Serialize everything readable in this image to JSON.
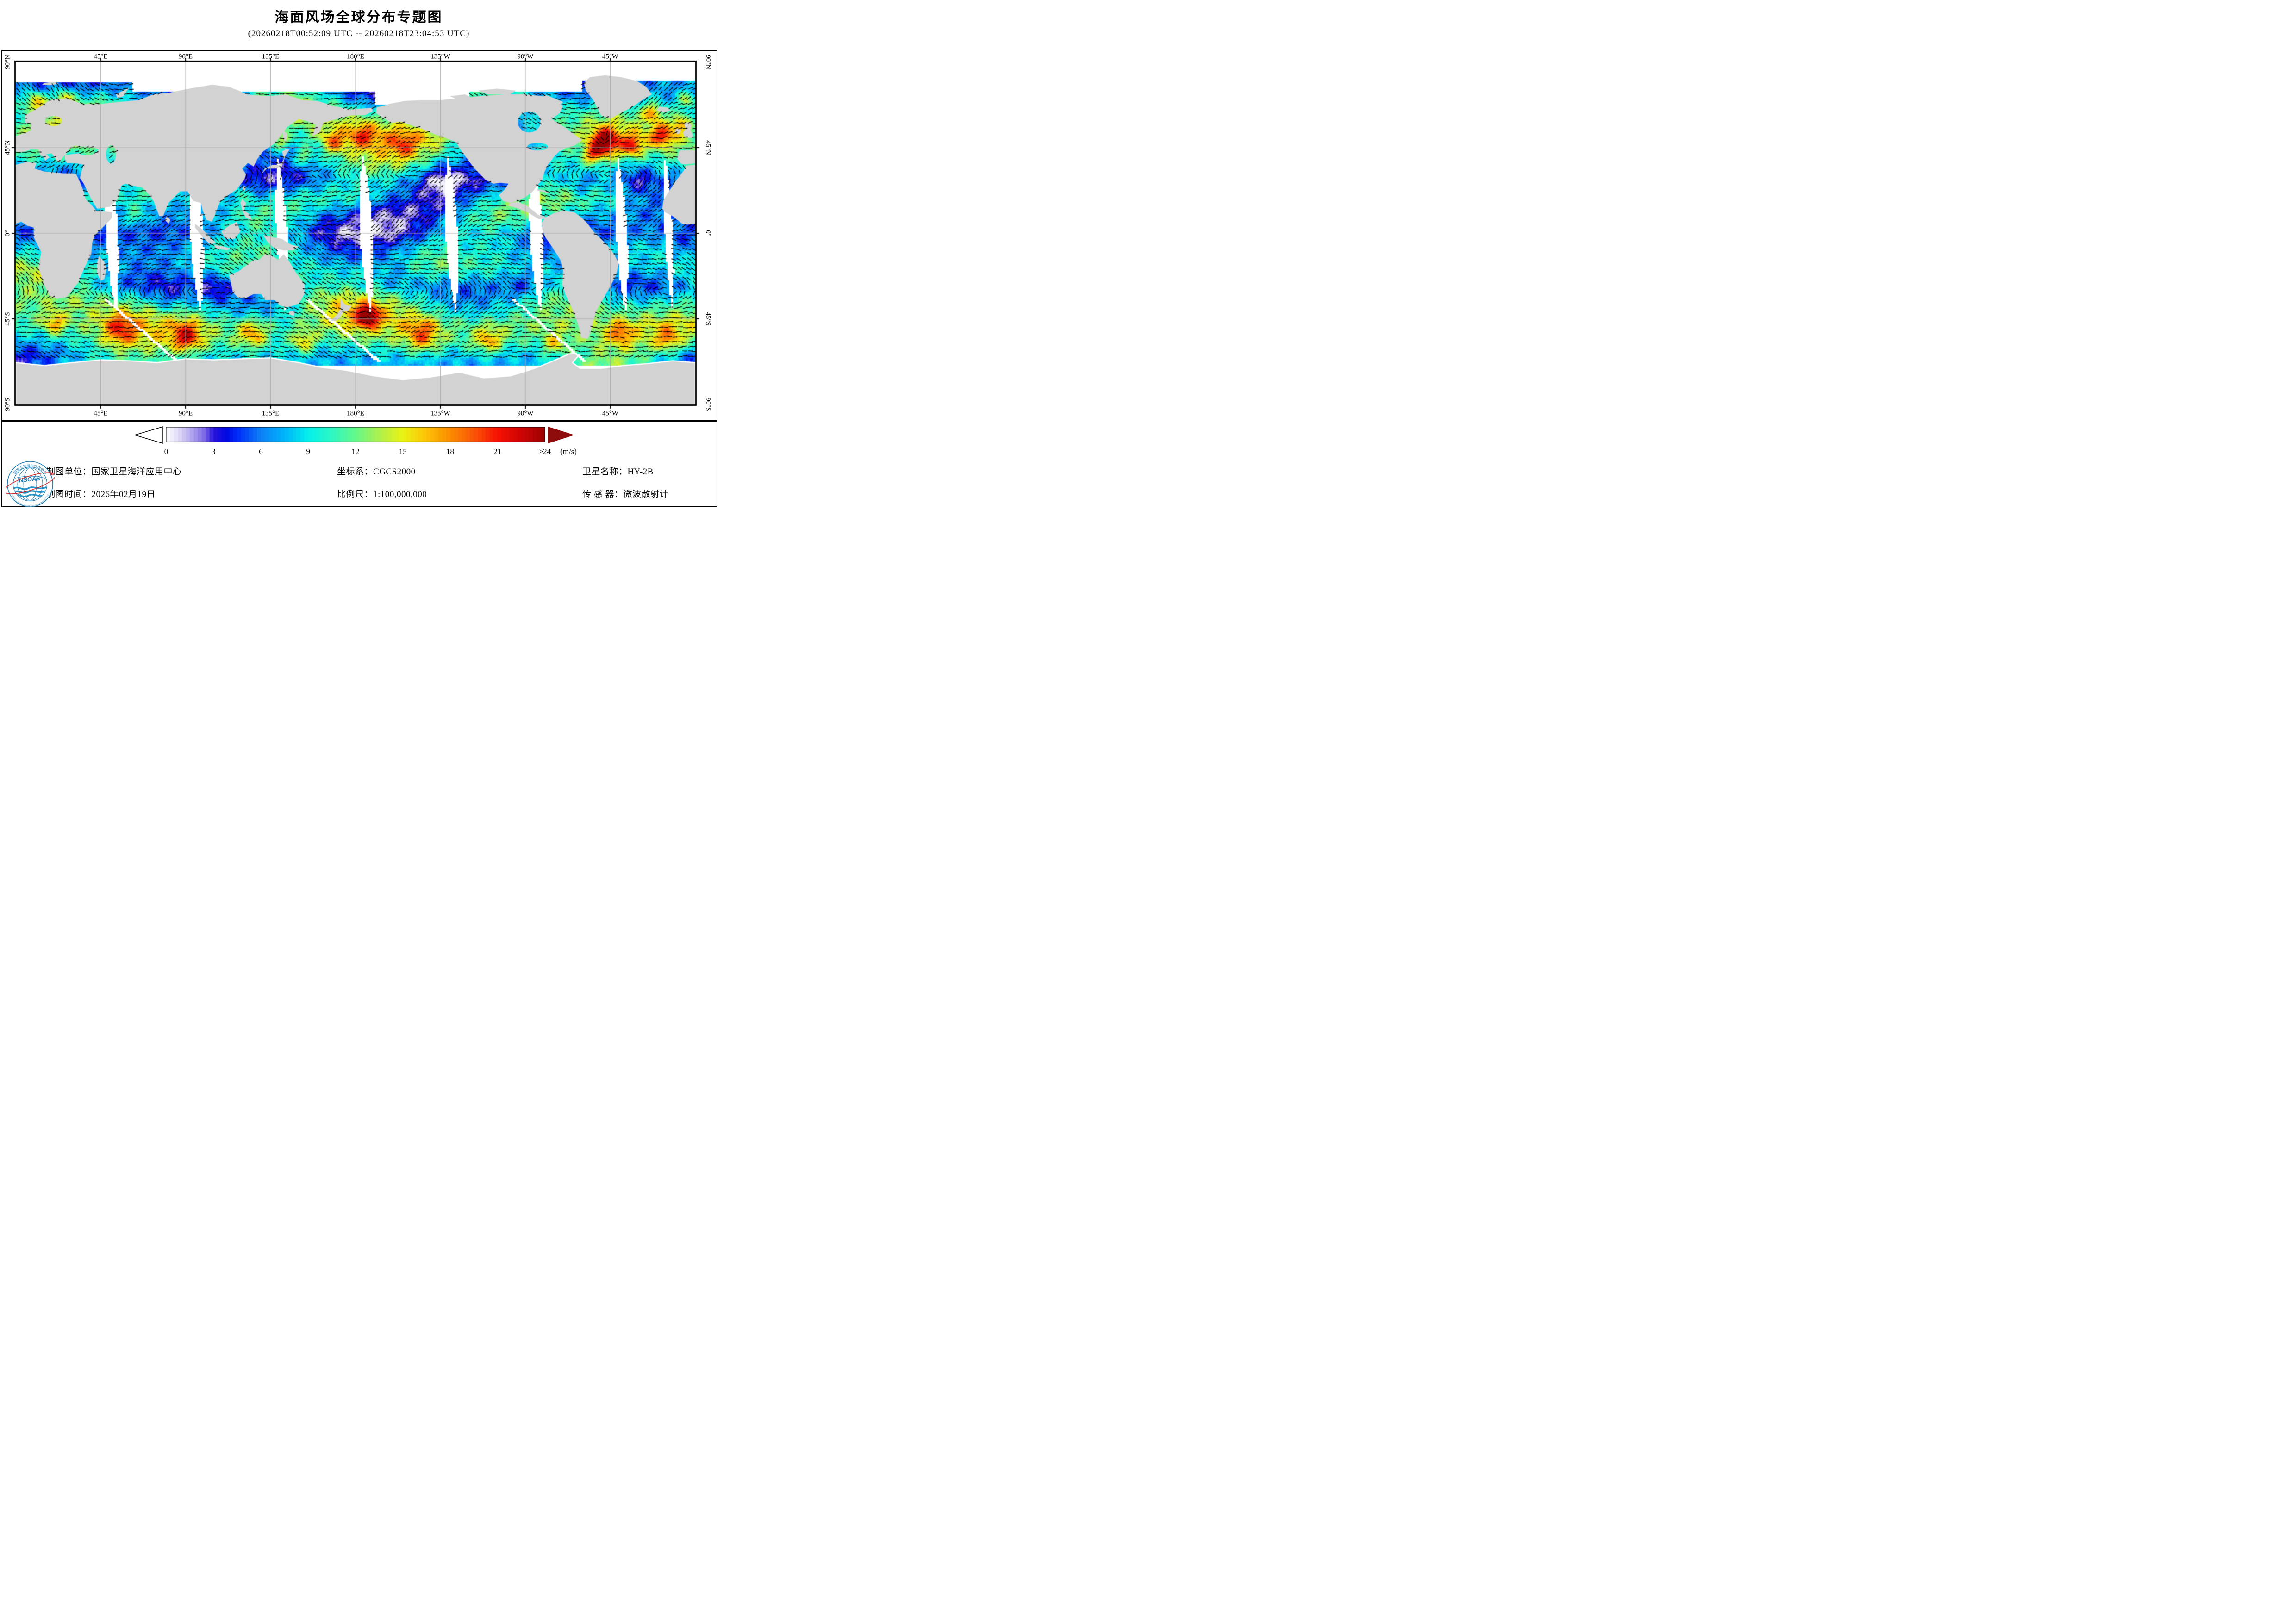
{
  "title": "海面风场全球分布专题图",
  "subtitle": "(20260218T00:52:09 UTC -- 20260218T23:04:53 UTC)",
  "map": {
    "top_labels": [
      "45°E",
      "90°E",
      "135°E",
      "180°E",
      "135°W",
      "90°W",
      "45°W"
    ],
    "bottom_labels": [
      "45°E",
      "90°E",
      "135°E",
      "180°E",
      "135°W",
      "90°W",
      "45°W"
    ],
    "left_labels": [
      "90°N",
      "45°N",
      "0°",
      "45°S",
      "90°S"
    ],
    "right_labels": [
      "90°N",
      "45°N",
      "0°",
      "45°S",
      "90°S"
    ],
    "land_color": "#d2d2d2",
    "no_data_color": "#ffffff",
    "gridline_color": "#a9a9a9",
    "frame_color": "#000000",
    "arrow_color": "#000000"
  },
  "colorbar": {
    "ticks": [
      "0",
      "3",
      "6",
      "9",
      "12",
      "15",
      "18",
      "21",
      "≥24"
    ],
    "unit": "(m/s)",
    "border_color": "#000000",
    "left_arrow_fill": "#ffffff",
    "right_arrow_fill": "#8e0b0b",
    "stops": [
      [
        0,
        "#ffffff"
      ],
      [
        0.8,
        "#ded8f6"
      ],
      [
        1.6,
        "#b2a6ee"
      ],
      [
        2.4,
        "#7d6ae6"
      ],
      [
        3,
        "#2a14dd"
      ],
      [
        3.8,
        "#0008e2"
      ],
      [
        4.6,
        "#0030f8"
      ],
      [
        6,
        "#0d80f6"
      ],
      [
        7.5,
        "#00b4fa"
      ],
      [
        9,
        "#04f0ec"
      ],
      [
        10.5,
        "#2ef6c2"
      ],
      [
        12,
        "#63f88a"
      ],
      [
        13.5,
        "#aef04e"
      ],
      [
        15,
        "#eaf313"
      ],
      [
        16.5,
        "#fcc107"
      ],
      [
        18,
        "#fb8b00"
      ],
      [
        19.5,
        "#f95507"
      ],
      [
        21,
        "#f81103"
      ],
      [
        22.5,
        "#cd0404"
      ],
      [
        24,
        "#9b0303"
      ]
    ]
  },
  "footer": {
    "items": [
      {
        "label": "制图单位：",
        "value": "国家卫星海洋应用中心"
      },
      {
        "label": "制图时间：",
        "value": "2026年02月19日"
      },
      {
        "label": "坐标系：",
        "value": "CGCS2000"
      },
      {
        "label": "比例尺：",
        "value": "1:100,000,000"
      },
      {
        "label": "卫星名称：",
        "value": "HY-2B"
      },
      {
        "label": "传 感 器：",
        "value": "微波散射计"
      }
    ],
    "logo": {
      "acronym": "NSOAS",
      "ring_top": "国家卫星海洋应用中心",
      "ring_bottom": "NATIONAL SATELLITE OCEAN APPLICATION SERVICE",
      "blue": "#1a7ab2",
      "red": "#d23030"
    }
  }
}
